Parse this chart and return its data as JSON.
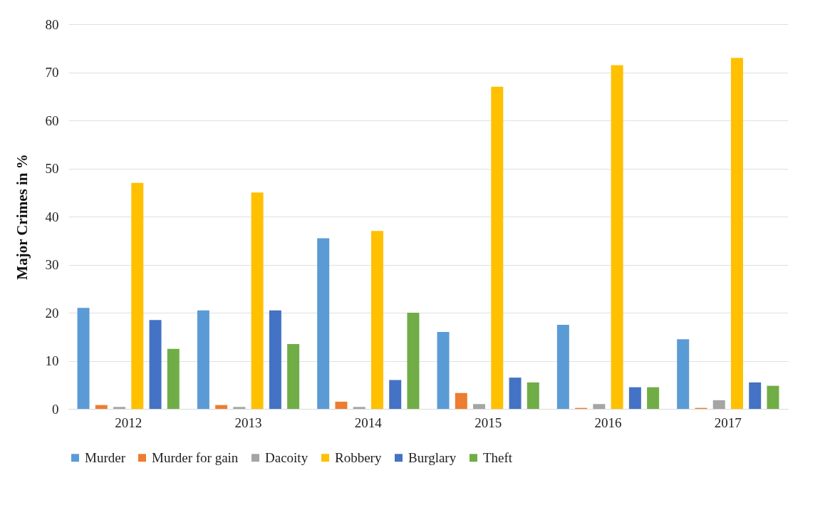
{
  "chart_data": {
    "type": "bar",
    "ylabel": "Major Crimes in %",
    "categories": [
      "2012",
      "2013",
      "2014",
      "2015",
      "2016",
      "2017"
    ],
    "series": [
      {
        "name": "Murder",
        "color": "#5b9bd5",
        "values": [
          21,
          20.5,
          35.5,
          16,
          17.5,
          14.5
        ]
      },
      {
        "name": "Murder for gain",
        "color": "#ed7d31",
        "values": [
          0.8,
          0.8,
          1.5,
          3.3,
          0.2,
          0.2
        ]
      },
      {
        "name": "Dacoity",
        "color": "#a5a5a5",
        "values": [
          0.4,
          0.4,
          0.4,
          1,
          1,
          1.8
        ]
      },
      {
        "name": "Robbery",
        "color": "#ffc000",
        "values": [
          47,
          45,
          37,
          67,
          71.5,
          73
        ]
      },
      {
        "name": "Burglary",
        "color": "#4472c4",
        "values": [
          18.5,
          20.5,
          6,
          6.5,
          4.5,
          5.5
        ]
      },
      {
        "name": "Theft",
        "color": "#70ad47",
        "values": [
          12.5,
          13.5,
          20,
          5.5,
          4.5,
          4.8
        ]
      }
    ],
    "ylim": [
      0,
      80
    ],
    "yticks": [
      0,
      10,
      20,
      30,
      40,
      50,
      60,
      70,
      80
    ],
    "grid": "y",
    "legend": "bottom"
  }
}
